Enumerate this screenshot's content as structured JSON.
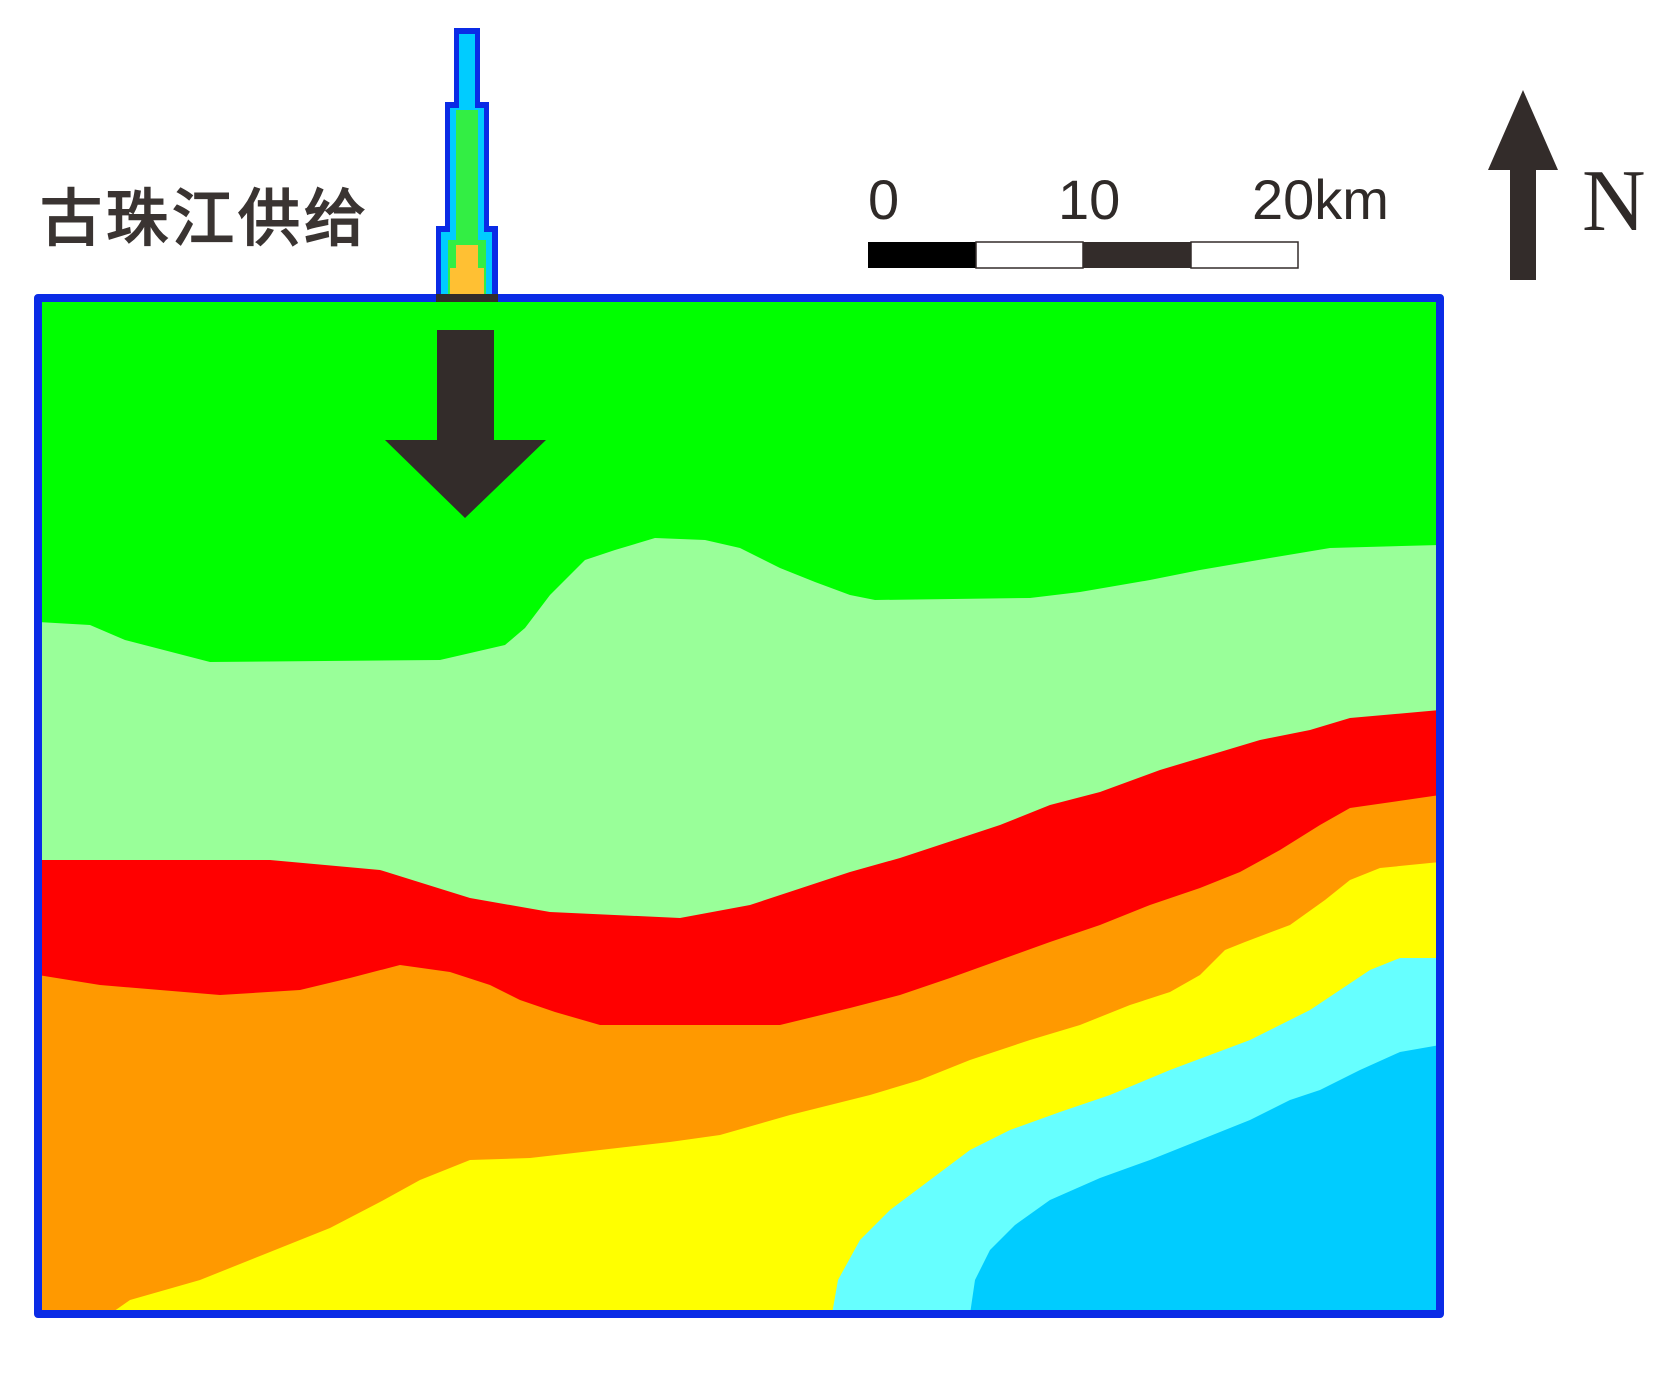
{
  "map": {
    "supply_label": "古珠江供给",
    "scale_bar": {
      "ticks": [
        "0",
        "10",
        "20km"
      ],
      "unit": "km"
    },
    "north_label": "N",
    "colors": {
      "frame": "#0a2be6",
      "zone_1": "#00ff00",
      "zone_2": "#99ff99",
      "zone_3": "#ff0000",
      "zone_4": "#ff9900",
      "zone_5": "#ffff00",
      "zone_6": "#66ffff",
      "zone_7": "#00ccff",
      "channel_orange": "#ffc033",
      "arrow": "#332c2a"
    },
    "icons": [
      "supply-arrow-icon",
      "north-arrow-icon"
    ]
  }
}
